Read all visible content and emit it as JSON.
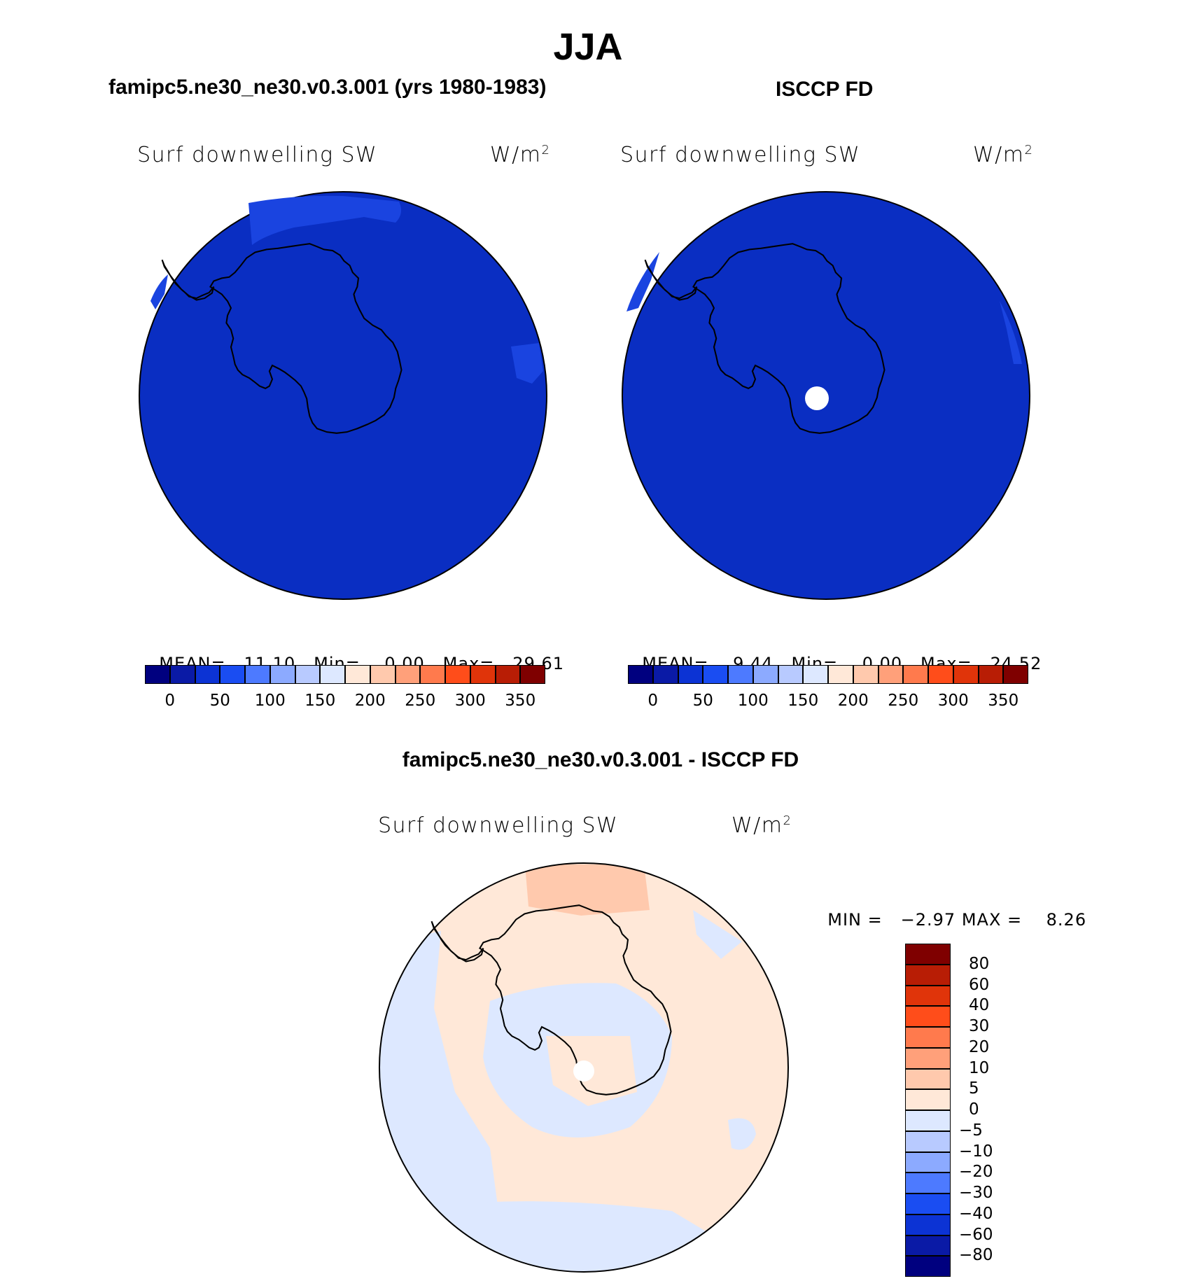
{
  "page": {
    "title": "JJA",
    "caption_bottom": "famipc5.ne30_ne30.v0.3.001 - ISCCP FD"
  },
  "panels": {
    "model": {
      "title": "famipc5.ne30_ne30.v0.3.001 (yrs 1980-1983)",
      "variable": "Surf downwelling SW",
      "units": "W/m",
      "units_sup": "2",
      "mean_label": "MEAN=",
      "mean_value": "11.10",
      "min_label": "Min=",
      "min_value": "0.00",
      "max_label": "Max=",
      "max_value": "29.61"
    },
    "obs": {
      "title": "ISCCP FD",
      "variable": "Surf downwelling SW",
      "units": "W/m",
      "units_sup": "2",
      "mean_label": "MEAN=",
      "mean_value": "9.44",
      "min_label": "Min=",
      "min_value": "0.00",
      "max_label": "Max=",
      "max_value": "24.52"
    },
    "diff": {
      "variable": "Surf downwelling SW",
      "units": "W/m",
      "units_sup": "2",
      "min_label": "MIN =",
      "min_value": "-2.97",
      "max_label": "MAX =",
      "max_value": "8.26"
    }
  },
  "chart_data": [
    {
      "type": "heatmap",
      "title": "famipc5.ne30_ne30.v0.3.001 (yrs 1980-1983)",
      "projection": "south polar stereographic",
      "variable": "Surf downwelling SW",
      "units": "W/m2",
      "stats": {
        "mean": 11.1,
        "min": 0.0,
        "max": 29.61
      },
      "colorbar_ticks": [
        "0",
        "50",
        "100",
        "150",
        "200",
        "250",
        "300",
        "350"
      ],
      "colorbar_colors": [
        "#00007f",
        "#0a1aa6",
        "#0c33d4",
        "#1a4df2",
        "#4d7aff",
        "#8caaff",
        "#b8caff",
        "#dde8ff",
        "#ffe8d8",
        "#ffc9ad",
        "#ffa07a",
        "#ff7a4d",
        "#ff4d1a",
        "#e0340a",
        "#b81d05",
        "#7f0000"
      ]
    },
    {
      "type": "heatmap",
      "title": "ISCCP FD",
      "projection": "south polar stereographic",
      "variable": "Surf downwelling SW",
      "units": "W/m2",
      "stats": {
        "mean": 9.44,
        "min": 0.0,
        "max": 24.52
      },
      "colorbar_ticks": [
        "0",
        "50",
        "100",
        "150",
        "200",
        "250",
        "300",
        "350"
      ]
    },
    {
      "type": "heatmap",
      "title": "famipc5.ne30_ne30.v0.3.001 - ISCCP FD",
      "projection": "south polar stereographic",
      "variable": "Surf downwelling SW",
      "units": "W/m2",
      "stats": {
        "min": -2.97,
        "max": 8.26
      },
      "colorbar_ticks": [
        "80",
        "60",
        "40",
        "30",
        "20",
        "10",
        "5",
        "0",
        "-5",
        "-10",
        "-20",
        "-30",
        "-40",
        "-60",
        "-80"
      ],
      "colorbar_colors": [
        "#7f0000",
        "#b81d05",
        "#e0340a",
        "#ff4d1a",
        "#ff7a4d",
        "#ffa07a",
        "#ffc9ad",
        "#ffe8d8",
        "#dde8ff",
        "#b8caff",
        "#8caaff",
        "#4d7aff",
        "#1a4df2",
        "#0c33d4",
        "#0a1aa6",
        "#00007f"
      ]
    }
  ]
}
